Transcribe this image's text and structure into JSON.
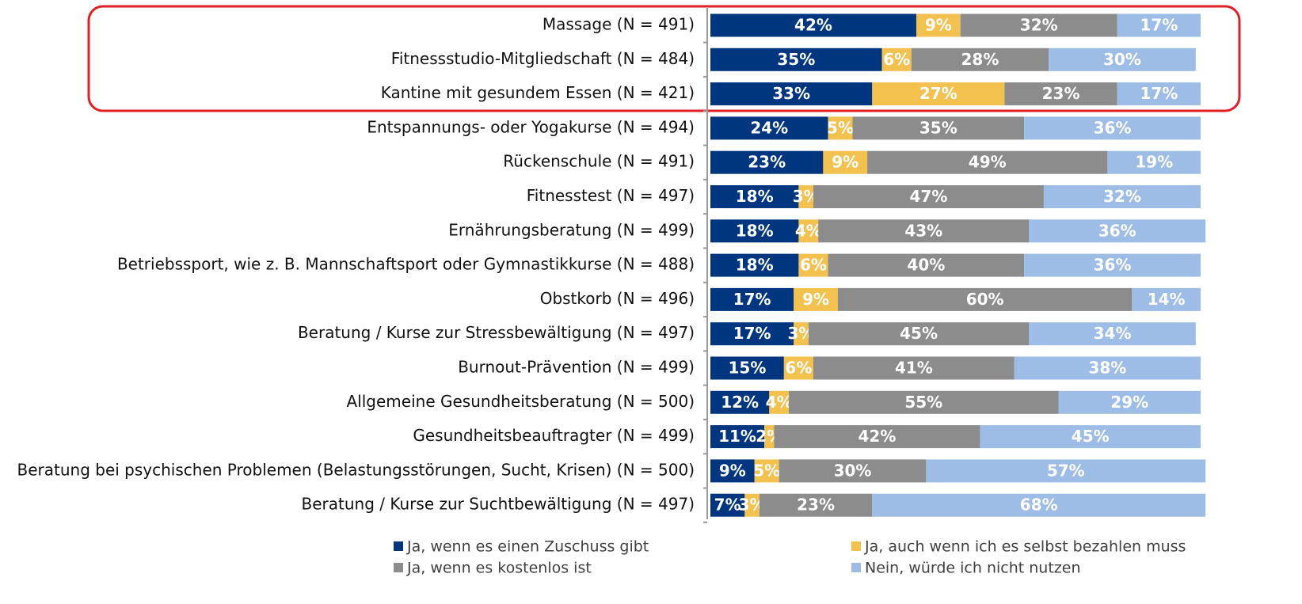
{
  "chart_data": {
    "type": "stacked-bar-horizontal",
    "categories": [
      "Massage  (N = 491)",
      "Fitnessstudio-Mitgliedschaft (N = 484)",
      "Kantine mit gesundem Essen (N = 421)",
      "Entspannungs- oder Yogakurse (N = 494)",
      "Rückenschule (N = 491)",
      "Fitnesstest (N = 497)",
      "Ernährungsberatung (N = 499)",
      "Betriebssport, wie z. B. Mannschaftsport oder Gymnastikkurse (N = 488)",
      "Obstkorb (N = 496)",
      "Beratung / Kurse zur Stressbewältigung (N = 497)",
      "Burnout-Prävention (N = 499)",
      "Allgemeine Gesundheitsberatung (N = 500)",
      "Gesundheitsbeauftragter (N = 499)",
      "Beratung bei psychischen Problemen (Belastungsstörungen, Sucht, Krisen) (N = 500)",
      "Beratung / Kurse zur Suchtbewältigung (N = 497)"
    ],
    "xlim": [
      0,
      100
    ],
    "series": [
      {
        "name": "Ja, wenn es einen Zuschuss gibt",
        "color": "#003580",
        "values": [
          42,
          35,
          33,
          24,
          23,
          18,
          18,
          18,
          17,
          17,
          15,
          12,
          11,
          9,
          7
        ],
        "value_labels": [
          "42%",
          "35%",
          "33%",
          "24%",
          "23%",
          "18%",
          "18%",
          "18%",
          "17%",
          "17%",
          "15%",
          "12%",
          "11%",
          "9%",
          "7%"
        ]
      },
      {
        "name": "Ja, auch wenn ich es selbst bezahlen muss",
        "color": "#f2c14e",
        "values": [
          9,
          6,
          27,
          5,
          9,
          3,
          4,
          6,
          9,
          3,
          6,
          4,
          2,
          5,
          3
        ],
        "value_labels": [
          "9%",
          "6%",
          "27%",
          "5%",
          "9%",
          "3%",
          "4%",
          "6%",
          "9%",
          "3%",
          "6%",
          "4%",
          "2%",
          "5%",
          "3%"
        ]
      },
      {
        "name": "Ja, wenn es kostenlos ist",
        "color": "#8c8c8c",
        "values": [
          32,
          28,
          23,
          35,
          49,
          47,
          43,
          40,
          60,
          45,
          41,
          55,
          42,
          30,
          23
        ],
        "value_labels": [
          "32%",
          "28%",
          "23%",
          "35%",
          "49%",
          "47%",
          "43%",
          "40%",
          "60%",
          "45%",
          "41%",
          "55%",
          "42%",
          "30%",
          "23%"
        ]
      },
      {
        "name": "Nein, würde ich nicht nutzen",
        "color": "#9dbde6",
        "values": [
          17,
          30,
          17,
          36,
          19,
          32,
          36,
          36,
          14,
          34,
          38,
          29,
          45,
          57,
          68
        ],
        "value_labels": [
          "17%",
          "30%",
          "17%",
          "36%",
          "19%",
          "32%",
          "36%",
          "36%",
          "14%",
          "34%",
          "38%",
          "29%",
          "45%",
          "57%",
          "68%"
        ]
      }
    ]
  }
}
